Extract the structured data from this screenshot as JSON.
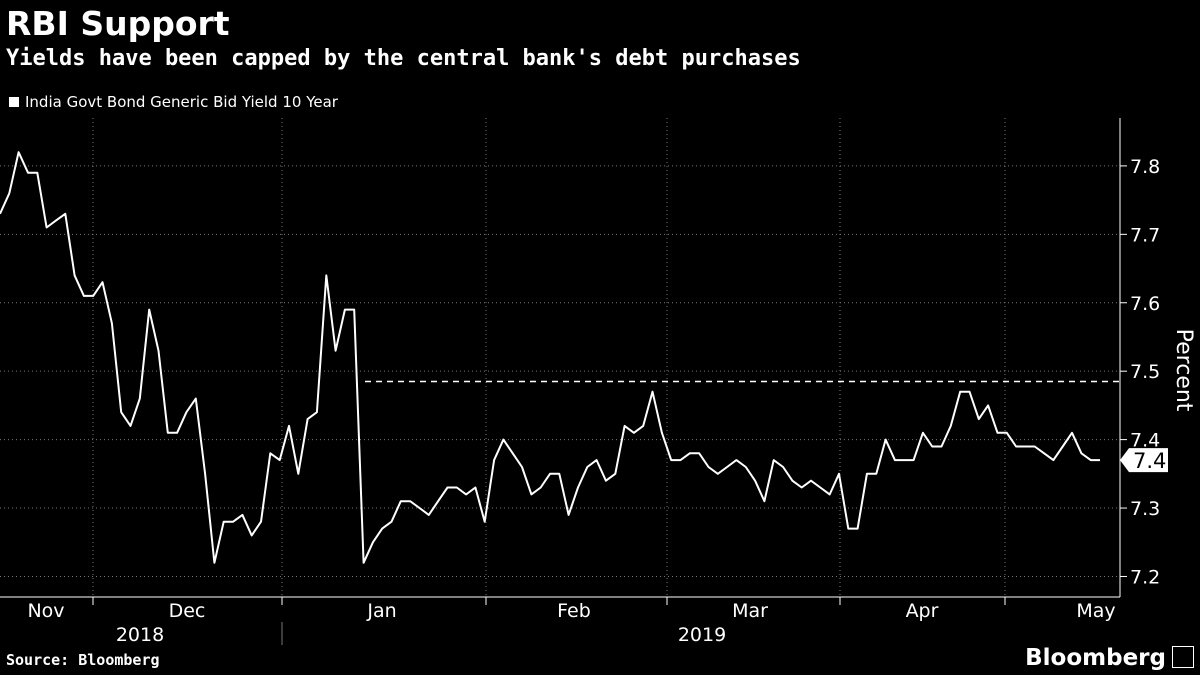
{
  "chart_data": {
    "type": "line",
    "title": "RBI Support",
    "subtitle": "Yields have been capped by the central bank's debt purchases",
    "legend": [
      "India Govt Bond Generic Bid Yield 10 Year"
    ],
    "ylabel": "Percent",
    "ylim": [
      7.17,
      7.87
    ],
    "yticks": [
      7.2,
      7.3,
      7.4,
      7.5,
      7.6,
      7.7,
      7.8
    ],
    "last_value_label": "7.4",
    "reference_line": 7.485,
    "month_labels": [
      "Nov",
      "Dec",
      "Jan",
      "Feb",
      "Mar",
      "Apr",
      "May"
    ],
    "year_labels": [
      "2018",
      "2019"
    ],
    "series": [
      {
        "name": "India Govt Bond Generic Bid Yield 10 Year",
        "x_start": "2018-10-29",
        "x_end": "2019-05-03",
        "values": [
          7.73,
          7.76,
          7.82,
          7.79,
          7.79,
          7.71,
          7.72,
          7.73,
          7.64,
          7.61,
          7.61,
          7.63,
          7.57,
          7.44,
          7.42,
          7.46,
          7.59,
          7.53,
          7.41,
          7.41,
          7.44,
          7.46,
          7.35,
          7.22,
          7.28,
          7.28,
          7.29,
          7.26,
          7.28,
          7.38,
          7.37,
          7.42,
          7.35,
          7.43,
          7.44,
          7.64,
          7.53,
          7.59,
          7.59,
          7.22,
          7.25,
          7.27,
          7.28,
          7.31,
          7.31,
          7.3,
          7.29,
          7.31,
          7.33,
          7.33,
          7.32,
          7.33,
          7.28,
          7.37,
          7.4,
          7.38,
          7.36,
          7.32,
          7.33,
          7.35,
          7.35,
          7.29,
          7.33,
          7.36,
          7.37,
          7.34,
          7.35,
          7.42,
          7.41,
          7.42,
          7.47,
          7.41,
          7.37,
          7.37,
          7.38,
          7.38,
          7.36,
          7.35,
          7.36,
          7.37,
          7.36,
          7.34,
          7.31,
          7.37,
          7.36,
          7.34,
          7.33,
          7.34,
          7.33,
          7.32,
          7.35,
          7.27,
          7.27,
          7.35,
          7.35,
          7.4,
          7.37,
          7.37,
          7.37,
          7.41,
          7.39,
          7.39,
          7.42,
          7.47,
          7.47,
          7.43,
          7.45,
          7.41,
          7.41,
          7.39,
          7.39,
          7.39,
          7.38,
          7.37,
          7.39,
          7.41,
          7.38,
          7.37,
          7.37
        ]
      }
    ]
  },
  "footer": {
    "source": "Source: Bloomberg",
    "brand": "Bloomberg"
  }
}
